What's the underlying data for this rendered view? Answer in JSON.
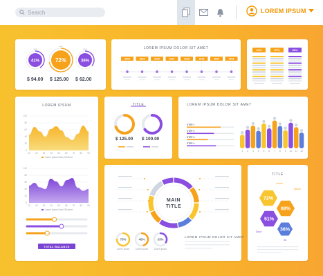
{
  "colors": {
    "orange": "#f7a21b",
    "yellow": "#f8c530",
    "purple": "#8a4ee0",
    "blue": "#5b7ddb",
    "gray": "#cfd6df",
    "gray_light": "#e6eaee"
  },
  "topbar": {
    "search_placeholder": "Search",
    "icons": [
      "document-icon",
      "mail-icon",
      "bell-icon"
    ],
    "user_name": "LOREM IPSUM"
  },
  "card_stats": {
    "rings": [
      {
        "label": "41%",
        "value": 0.41,
        "color": "#8a4ee0",
        "tag": "text"
      },
      {
        "label": "72%",
        "value": 0.72,
        "color": "#f7a21b",
        "tag": "text"
      },
      {
        "label": "36%",
        "value": 0.36,
        "color": "#8a4ee0",
        "tag": "text"
      }
    ],
    "values": [
      "$ 94.00",
      "$ 125.00",
      "$ 62.00"
    ]
  },
  "card_timeline": {
    "title": "LOREM IPSUM DOLOR SIT AMET",
    "years": [
      "2014",
      "2015",
      "2016",
      "2017",
      "2018",
      "2019",
      "2020",
      "2021"
    ]
  },
  "card_bars": {
    "tags": [
      "44%",
      "57%",
      "86%"
    ]
  },
  "card_area": {
    "title": "LOREM IPSUM",
    "chart1": {
      "yticks": [
        "100",
        "80",
        "60",
        "40",
        "20",
        "0"
      ],
      "xticks": [
        "10",
        "20",
        "30",
        "40",
        "50",
        "60",
        "70",
        "80",
        "90"
      ],
      "legend": "Lorem Ipsum Dolor Sit Amet",
      "values": [
        45,
        68,
        55,
        40,
        62,
        70,
        58,
        38,
        30,
        48,
        72,
        55
      ]
    },
    "chart2": {
      "yticks": [
        "100",
        "80",
        "60",
        "40",
        "20",
        "0"
      ],
      "xticks": [
        "10",
        "20",
        "30",
        "40",
        "50",
        "60",
        "70",
        "80",
        "90"
      ],
      "legend": "Lorem Ipsum Dolor Sit Amet",
      "values": [
        50,
        58,
        45,
        40,
        70,
        62,
        48,
        66,
        72,
        44,
        35,
        40
      ]
    },
    "sliders": [
      {
        "value": 0.46,
        "color": "#f7a21b"
      },
      {
        "value": 0.58,
        "color": "#8a4ee0"
      },
      {
        "value": 0.34,
        "color": "#f7a21b"
      }
    ],
    "button": "TOTAL BALANCE"
  },
  "card_title": {
    "title": "TITLE",
    "amounts": [
      "$ 125.00",
      "$ 100.00"
    ]
  },
  "card_steps": {
    "title": "LOREM IPSUM DOLOR SIT AMET",
    "steps": [
      "STEP 1",
      "STEP 2",
      "STEP 3",
      "STEP 4"
    ],
    "step_values": [
      0.72,
      0.58,
      0.45,
      0.62
    ],
    "xticks": [
      "1",
      "2",
      "3",
      "4",
      "5",
      "6",
      "7",
      "8",
      "9",
      "10",
      "11",
      "12"
    ],
    "bars": [
      0.45,
      0.62,
      0.75,
      0.58,
      0.82,
      0.66,
      0.92,
      0.74,
      0.6,
      0.85,
      0.7,
      0.52
    ]
  },
  "card_donut": {
    "title_line1": "MAIN",
    "title_line2": "TITLE",
    "rings": [
      {
        "label": "75%",
        "value": 0.75,
        "color": "#f8c530"
      },
      {
        "label": "45%",
        "value": 0.45,
        "color": "#f7a21b"
      },
      {
        "label": "33%",
        "value": 0.33,
        "color": "#8a4ee0"
      }
    ],
    "ring_caption": "Lorem Ipsum",
    "footer_title": "LOREM IPSUM DOLOR SIT AMET",
    "slices": [
      0.14,
      0.11,
      0.12,
      0.1,
      0.13,
      0.09,
      0.11,
      0.12,
      0.08
    ]
  },
  "card_hex": {
    "title": "TITLE",
    "hexes": [
      "72%",
      "68%",
      "51%",
      "36%"
    ],
    "captions": [
      "Lorem",
      "Ipsum",
      "Dolor",
      "Sit"
    ]
  }
}
